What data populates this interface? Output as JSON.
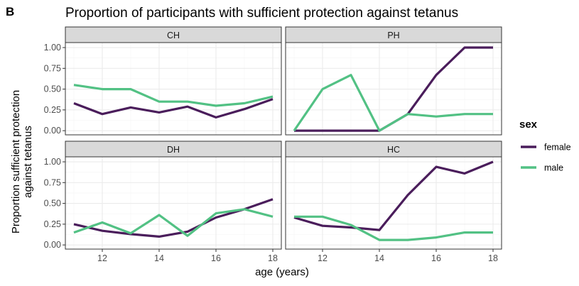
{
  "tag": "B",
  "chart_data": {
    "type": "line",
    "title": "Proportion of participants with sufficient protection against tetanus",
    "xlabel": "age (years)",
    "ylabel": [
      "Proportion sufficient protection",
      "against tetanus"
    ],
    "xlim": [
      10.7,
      18.3
    ],
    "ylim": [
      -0.05,
      1.06
    ],
    "x_ticks": [
      12,
      14,
      16,
      18
    ],
    "y_ticks": [
      0,
      0.25,
      0.5,
      0.75,
      1.0
    ],
    "y_tick_labels": [
      "0.00",
      "0.25",
      "0.50",
      "0.75",
      "1.00"
    ],
    "grid": true,
    "legend": {
      "title": "sex",
      "placement": "right",
      "entries": [
        {
          "label": "female",
          "color": "#4a1d5b"
        },
        {
          "label": "male",
          "color": "#52c184"
        }
      ]
    },
    "panels": [
      {
        "name": "CH",
        "series": [
          {
            "name": "female",
            "x": [
              11,
              12,
              13,
              14,
              15,
              16,
              17,
              18
            ],
            "y": [
              0.33,
              0.2,
              0.28,
              0.22,
              0.29,
              0.16,
              0.26,
              0.38
            ]
          },
          {
            "name": "male",
            "x": [
              11,
              12,
              13,
              14,
              15,
              16,
              17,
              18
            ],
            "y": [
              0.55,
              0.5,
              0.5,
              0.35,
              0.35,
              0.3,
              0.33,
              0.41
            ]
          }
        ]
      },
      {
        "name": "PH",
        "series": [
          {
            "name": "female",
            "x": [
              11,
              12,
              13,
              14,
              15,
              16,
              17,
              18
            ],
            "y": [
              0.0,
              0.0,
              0.0,
              0.0,
              0.2,
              0.67,
              1.0,
              1.0
            ]
          },
          {
            "name": "male",
            "x": [
              11,
              12,
              13,
              14,
              15,
              16,
              17,
              18
            ],
            "y": [
              0.0,
              0.5,
              0.67,
              0.0,
              0.2,
              0.17,
              0.2,
              0.2
            ]
          }
        ]
      },
      {
        "name": "DH",
        "series": [
          {
            "name": "female",
            "x": [
              11,
              12,
              13,
              14,
              15,
              16,
              17,
              18
            ],
            "y": [
              0.25,
              0.17,
              0.13,
              0.1,
              0.16,
              0.33,
              0.43,
              0.55
            ]
          },
          {
            "name": "male",
            "x": [
              11,
              12,
              13,
              14,
              15,
              16,
              17,
              18
            ],
            "y": [
              0.15,
              0.27,
              0.14,
              0.36,
              0.11,
              0.38,
              0.43,
              0.34
            ]
          }
        ]
      },
      {
        "name": "HC",
        "series": [
          {
            "name": "female",
            "x": [
              11,
              12,
              13,
              14,
              15,
              16,
              17,
              18
            ],
            "y": [
              0.33,
              0.23,
              0.21,
              0.18,
              0.6,
              0.94,
              0.86,
              1.0
            ]
          },
          {
            "name": "male",
            "x": [
              11,
              12,
              13,
              14,
              15,
              16,
              17,
              18
            ],
            "y": [
              0.34,
              0.34,
              0.24,
              0.06,
              0.06,
              0.09,
              0.15,
              0.15
            ]
          }
        ]
      }
    ]
  }
}
